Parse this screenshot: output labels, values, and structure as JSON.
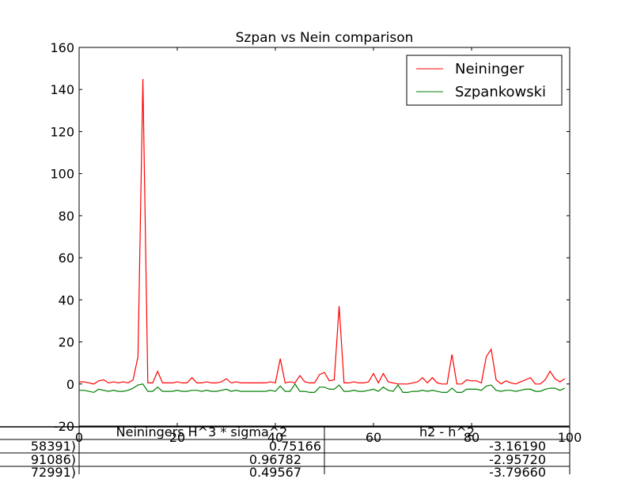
{
  "chart_data": {
    "type": "line",
    "title": "Szpan vs Nein comparison",
    "xlabel": "",
    "ylabel": "",
    "xlim": [
      0,
      100
    ],
    "ylim": [
      -20,
      160
    ],
    "x_ticks": [
      0,
      20,
      40,
      60,
      80,
      100
    ],
    "y_ticks": [
      -20,
      0,
      20,
      40,
      60,
      80,
      100,
      120,
      140,
      160
    ],
    "grid": false,
    "legend_position": "upper right",
    "series": [
      {
        "name": "Neininger",
        "color": "#ff0000",
        "x": [
          0,
          1,
          2,
          3,
          4,
          5,
          6,
          7,
          8,
          9,
          10,
          11,
          12,
          13,
          14,
          15,
          16,
          17,
          18,
          19,
          20,
          21,
          22,
          23,
          24,
          25,
          26,
          27,
          28,
          29,
          30,
          31,
          32,
          33,
          34,
          35,
          36,
          37,
          38,
          39,
          40,
          41,
          42,
          43,
          44,
          45,
          46,
          47,
          48,
          49,
          50,
          51,
          52,
          53,
          54,
          55,
          56,
          57,
          58,
          59,
          60,
          61,
          62,
          63,
          64,
          65,
          66,
          67,
          68,
          69,
          70,
          71,
          72,
          73,
          74,
          75,
          76,
          77,
          78,
          79,
          80,
          81,
          82,
          83,
          84,
          85,
          86,
          87,
          88,
          89,
          90,
          91,
          92,
          93,
          94,
          95,
          96,
          97,
          98,
          99
        ],
        "y": [
          1,
          1,
          0.5,
          0,
          1.5,
          2,
          0.5,
          1,
          0.5,
          1,
          0.5,
          2,
          13,
          145,
          0.5,
          0.5,
          6,
          0.5,
          0.5,
          0.5,
          1,
          0.5,
          0.5,
          3,
          0.5,
          0.5,
          1,
          0.5,
          0.5,
          1,
          2.5,
          0.5,
          1,
          0.5,
          0.5,
          0.5,
          0.5,
          0.5,
          0.5,
          1,
          0.5,
          12,
          0.5,
          1,
          0.5,
          4,
          1,
          0.5,
          0.5,
          4.5,
          5.5,
          1.5,
          2,
          37,
          0.5,
          0.5,
          1,
          0.5,
          0.5,
          1,
          5,
          0.5,
          5,
          1,
          0.5,
          0,
          0,
          0,
          0.5,
          1,
          3,
          0.5,
          3,
          0.5,
          0,
          0,
          14,
          0,
          0,
          2,
          1.5,
          1.5,
          0.5,
          13,
          16.5,
          2,
          0,
          1.5,
          0.5,
          0,
          1,
          2,
          3,
          0,
          0,
          2,
          6,
          2.5,
          1,
          2.5
        ]
      },
      {
        "name": "Szpankowski",
        "color": "#008000",
        "x": [
          0,
          1,
          2,
          3,
          4,
          5,
          6,
          7,
          8,
          9,
          10,
          11,
          12,
          13,
          14,
          15,
          16,
          17,
          18,
          19,
          20,
          21,
          22,
          23,
          24,
          25,
          26,
          27,
          28,
          29,
          30,
          31,
          32,
          33,
          34,
          35,
          36,
          37,
          38,
          39,
          40,
          41,
          42,
          43,
          44,
          45,
          46,
          47,
          48,
          49,
          50,
          51,
          52,
          53,
          54,
          55,
          56,
          57,
          58,
          59,
          60,
          61,
          62,
          63,
          64,
          65,
          66,
          67,
          68,
          69,
          70,
          71,
          72,
          73,
          74,
          75,
          76,
          77,
          78,
          79,
          80,
          81,
          82,
          83,
          84,
          85,
          86,
          87,
          88,
          89,
          90,
          91,
          92,
          93,
          94,
          95,
          96,
          97,
          98,
          99
        ],
        "y": [
          -3,
          -3,
          -3.5,
          -4,
          -2.5,
          -3,
          -3.5,
          -3,
          -3.5,
          -3.5,
          -3,
          -2,
          -0.5,
          0,
          -3.5,
          -3.5,
          -1.5,
          -3.5,
          -3.5,
          -3.5,
          -3,
          -3.5,
          -3.5,
          -3,
          -3,
          -3.5,
          -3,
          -3.5,
          -3.5,
          -3,
          -2.5,
          -3.5,
          -3,
          -3.5,
          -3.5,
          -3.5,
          -3.5,
          -3.5,
          -3.5,
          -3,
          -3.5,
          -1,
          -3.5,
          -3.5,
          0,
          -3.5,
          -3.5,
          -4,
          -4,
          -1.5,
          -1.5,
          -2.5,
          -2.5,
          -0.5,
          -3.5,
          -3.5,
          -3,
          -3.5,
          -3.5,
          -3,
          -2.5,
          -3.5,
          -1.5,
          -3,
          -3.5,
          -0.5,
          -4,
          -4,
          -3.5,
          -3.5,
          -3,
          -3.5,
          -3,
          -3.5,
          -4,
          -4,
          -2,
          -4,
          -4,
          -2.5,
          -2.5,
          -2.5,
          -3,
          -1,
          -0.5,
          -3,
          -3.5,
          -3,
          -3,
          -3.5,
          -3,
          -2.5,
          -2.5,
          -3.5,
          -3.5,
          -2.5,
          -2,
          -2,
          -3,
          -2
        ]
      }
    ]
  },
  "table": {
    "headers": [
      "Neiningers H^3 * sigma^2",
      "h2 - h^2"
    ],
    "rows": [
      [
        "58391)",
        "0.75166",
        "-3.16190"
      ],
      [
        "91086)",
        "0.96782",
        "-2.95720"
      ],
      [
        "72991)",
        "0.49567",
        "-3.79660"
      ]
    ]
  }
}
